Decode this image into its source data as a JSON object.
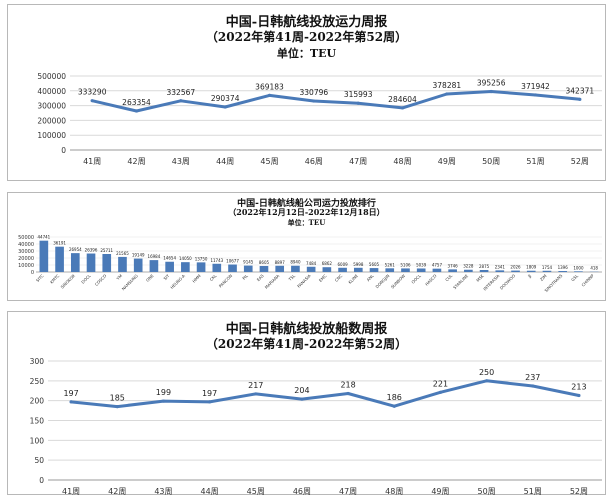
{
  "chart_data": [
    {
      "type": "line",
      "title": "中国-日韩航线投放运力周报",
      "subtitle": "（2022年第41周-2022年第52周）",
      "unit_label": "单位：TEU",
      "categories": [
        "41周",
        "42周",
        "43周",
        "44周",
        "45周",
        "46周",
        "47周",
        "48周",
        "49周",
        "50周",
        "51周",
        "52周"
      ],
      "values": [
        333290,
        263354,
        332567,
        290374,
        369183,
        330796,
        315993,
        284604,
        378281,
        395256,
        371942,
        342371
      ],
      "yticks": [
        0,
        100000,
        200000,
        300000,
        400000,
        500000
      ],
      "ylim": [
        0,
        500000
      ],
      "xlabel": "",
      "ylabel": "",
      "grid": true,
      "line_color": "#4a7ab8"
    },
    {
      "type": "bar",
      "title": "中国-日韩航线船公司运力投放排行",
      "subtitle": "（2022年12月12日-2022年12月18日）",
      "unit_label": "单位：TEU",
      "categories": [
        "SITC",
        "KMTC",
        "SINOKOR",
        "DOCL",
        "COSCO",
        "YM",
        "NAMSUNG",
        "ONE",
        "SIT",
        "HEUNG-A",
        "HMM",
        "CKL",
        "PANCON",
        "PIL",
        "EAS",
        "MARIANA",
        "TSL",
        "PANASIA",
        "EMC",
        "CNC",
        "KLINE",
        "ANL",
        "DONGJIN",
        "SUNBOW",
        "OOCL",
        "HASCO",
        "CUL",
        "STARLINE",
        "MSK",
        "INTERASIA",
        "DOOWOO",
        "JJ",
        "ZIM",
        "SINOTRANS",
        "GSL",
        "CHINNP"
      ],
      "values": [
        44741,
        36191,
        26954,
        26396,
        25711,
        21565,
        19149,
        16984,
        14654,
        14050,
        13750,
        11743,
        10677,
        9145,
        8605,
        8897,
        8940,
        7484,
        6862,
        6009,
        5998,
        5605,
        5261,
        5106,
        5039,
        4757,
        3746,
        3228,
        2875,
        2341,
        2026,
        1809,
        1754,
        1396,
        1000,
        418
      ],
      "yticks": [
        0,
        10000,
        20000,
        30000,
        40000,
        50000
      ],
      "ylim": [
        0,
        50000
      ],
      "xlabel": "",
      "ylabel": "",
      "bar_color": "#4a7ab8"
    },
    {
      "type": "line",
      "title": "中国-日韩航线投放船数周报",
      "subtitle": "（2022年第41周-2022年第52周）",
      "categories": [
        "41周",
        "42周",
        "43周",
        "44周",
        "45周",
        "46周",
        "47周",
        "48周",
        "49周",
        "50周",
        "51周",
        "52周"
      ],
      "values": [
        197,
        185,
        199,
        197,
        217,
        204,
        218,
        186,
        221,
        250,
        237,
        213
      ],
      "yticks": [
        0,
        50,
        100,
        150,
        200,
        250,
        300
      ],
      "ylim": [
        0,
        300
      ],
      "xlabel": "",
      "ylabel": "",
      "grid": true,
      "line_color": "#4a7ab8"
    }
  ]
}
